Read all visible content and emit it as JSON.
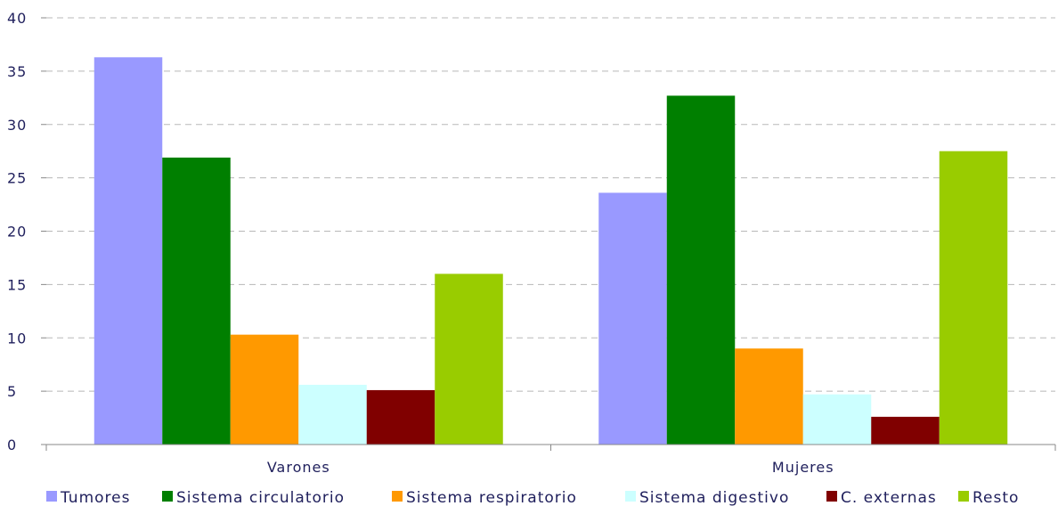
{
  "chart_data": {
    "type": "bar",
    "title": "",
    "xlabel": "",
    "ylabel": "",
    "ylim": [
      0,
      40
    ],
    "yticks": [
      0,
      5,
      10,
      15,
      20,
      25,
      30,
      35,
      40
    ],
    "grid": true,
    "legend_position": "bottom",
    "categories": [
      "Varones",
      "Mujeres"
    ],
    "series": [
      {
        "name": "Tumores",
        "color": "#9999ff",
        "values": [
          36.3,
          23.6
        ]
      },
      {
        "name": "Sistema  circulatorio",
        "color": "#007f00",
        "values": [
          26.9,
          32.7
        ]
      },
      {
        "name": "Sistema respiratorio",
        "color": "#ff9900",
        "values": [
          10.3,
          9.0
        ]
      },
      {
        "name": "Sistema digestivo",
        "color": "#ccffff",
        "values": [
          5.6,
          4.7
        ]
      },
      {
        "name": "C. externas",
        "color": "#800000",
        "values": [
          5.1,
          2.6
        ]
      },
      {
        "name": "Resto",
        "color": "#99cc00",
        "values": [
          16.0,
          27.5
        ]
      }
    ]
  }
}
